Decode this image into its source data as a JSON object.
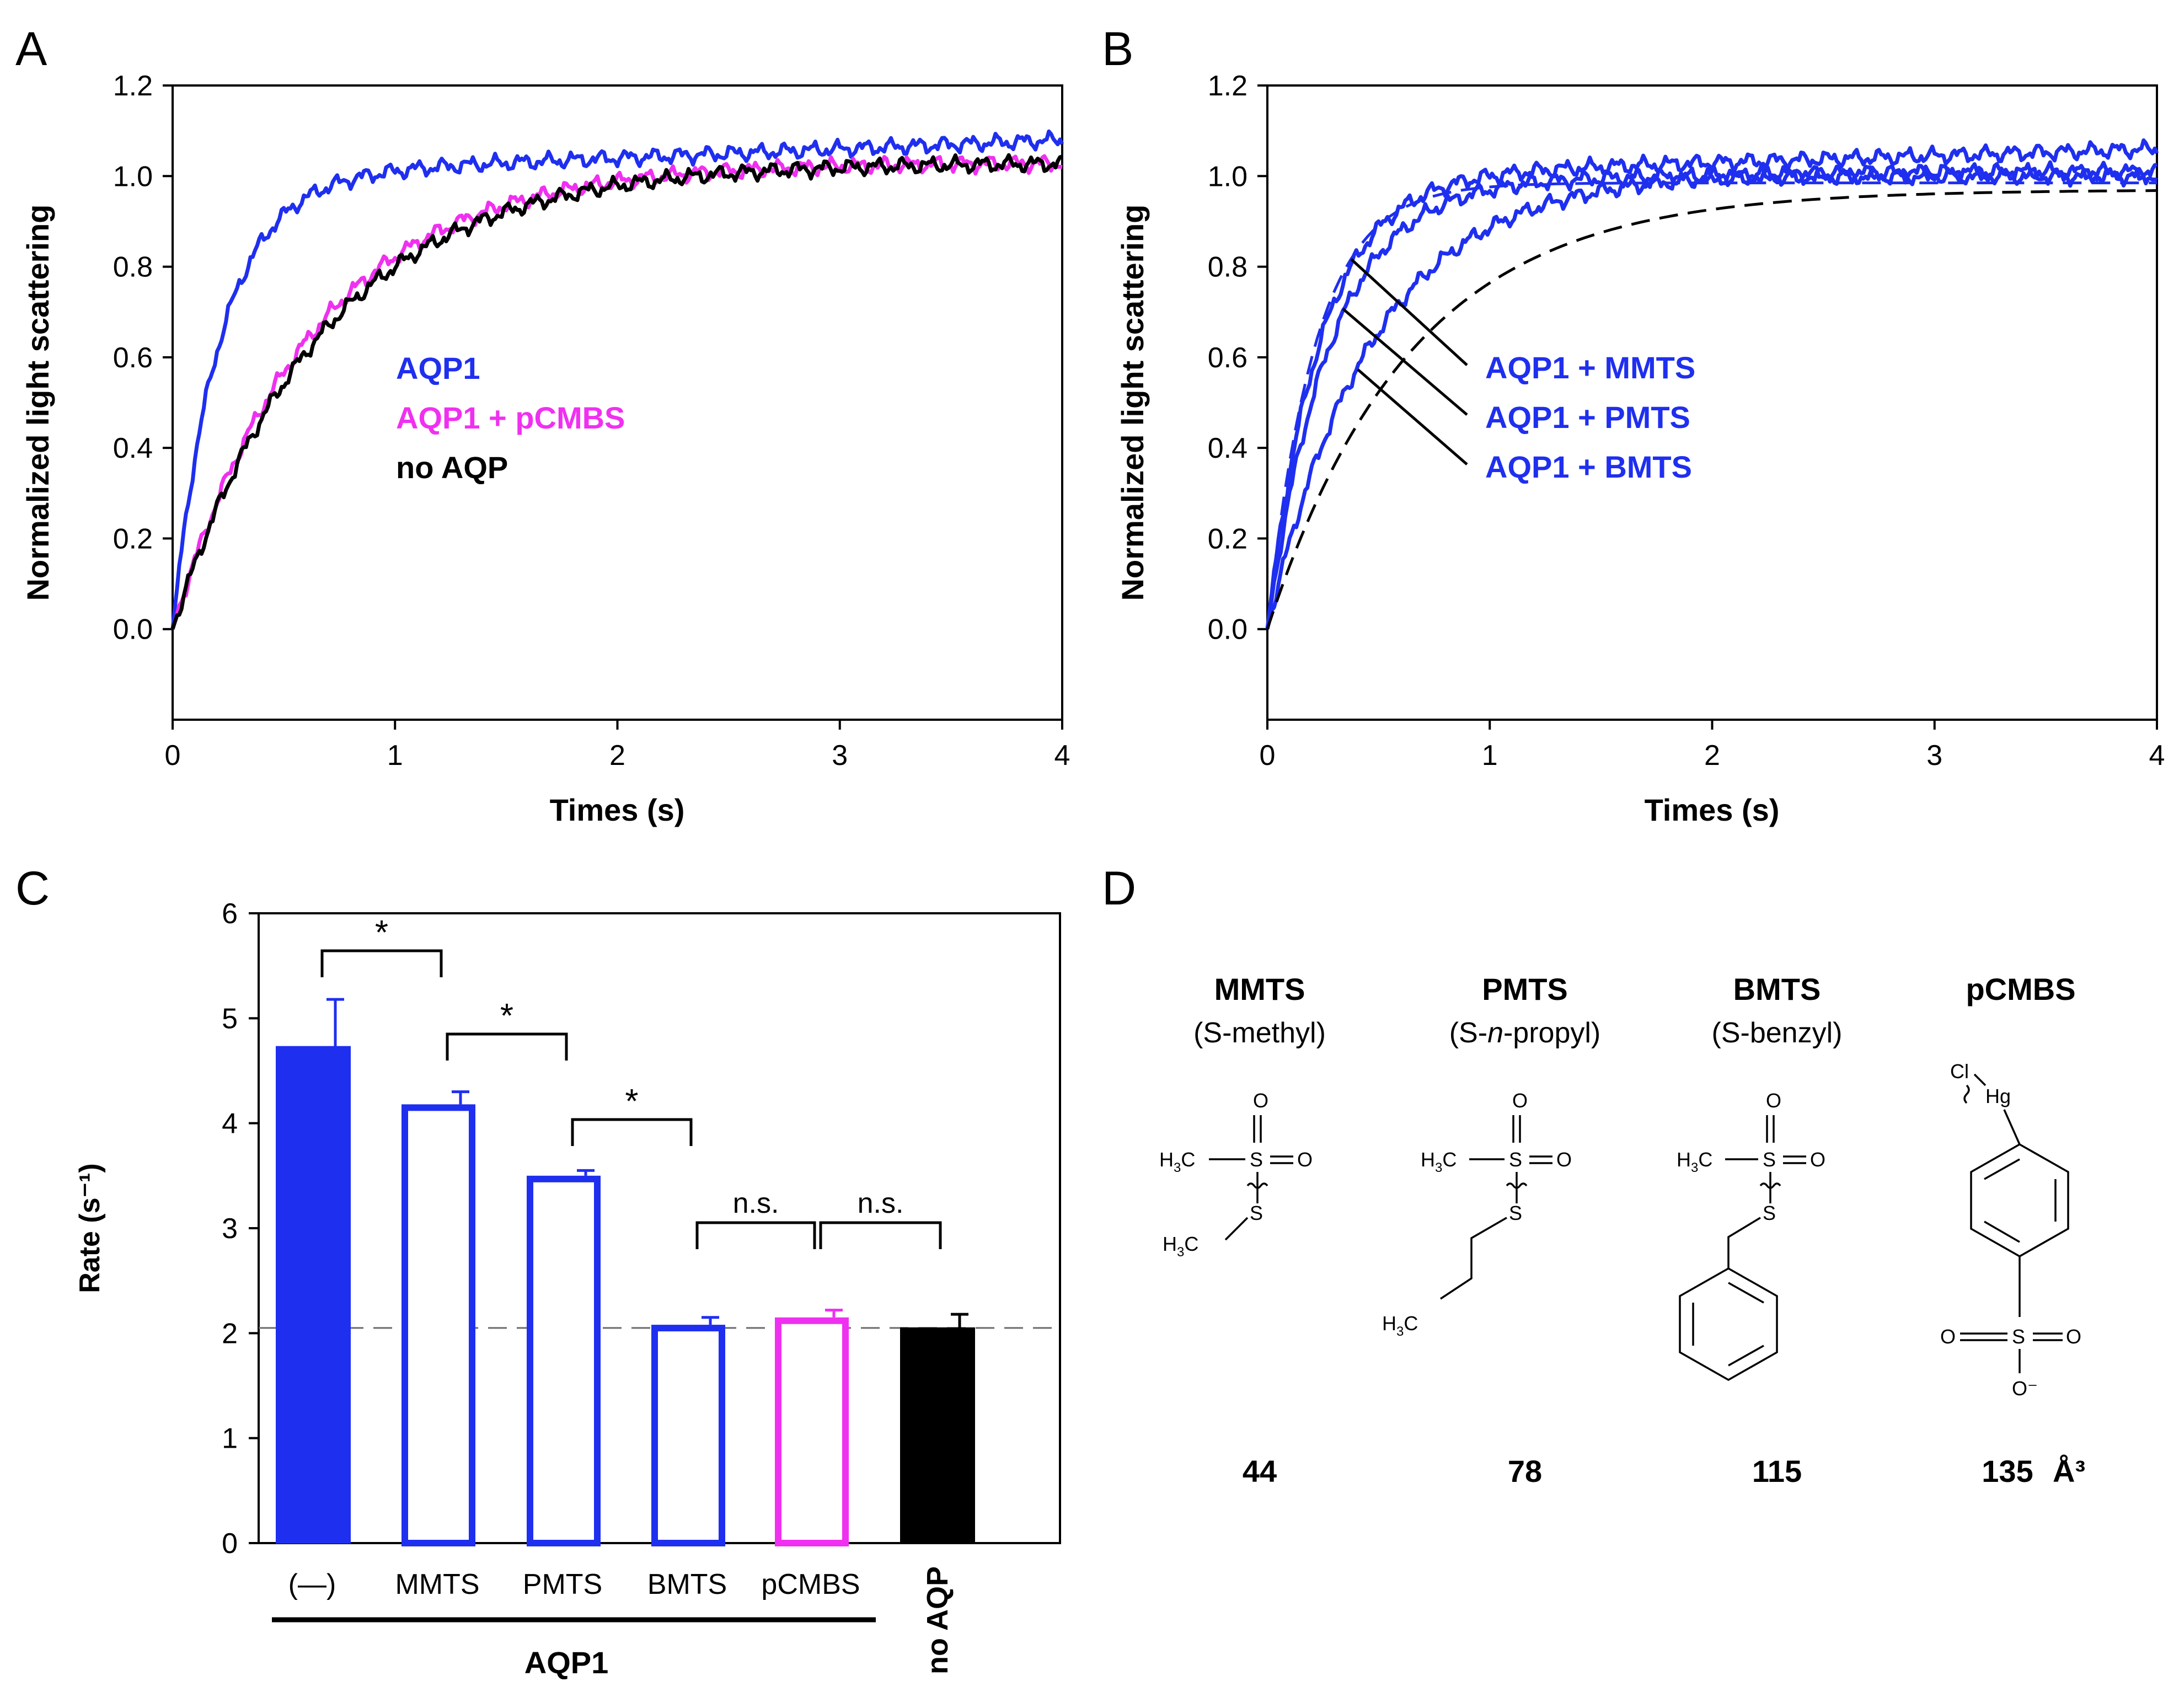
{
  "colors": {
    "aqp1": "#1f2fef",
    "pcmbs": "#f030f0",
    "noaqp": "#000000",
    "axis": "#000000",
    "refline": "#6b6b6b"
  },
  "panels": {
    "A": "A",
    "B": "B",
    "C": "C",
    "D": "D"
  },
  "chart_data": [
    {
      "id": "A",
      "type": "line",
      "xlabel": "Times (s)",
      "ylabel": "Normalized light scattering",
      "xlim": [
        0,
        4
      ],
      "ylim": [
        -0.2,
        1.2
      ],
      "xticks": [
        "0",
        "1",
        "2",
        "3",
        "4"
      ],
      "yticks": [
        "0.0",
        "0.2",
        "0.4",
        "0.6",
        "0.8",
        "1.0",
        "1.2"
      ],
      "series": [
        {
          "name": "AQP1",
          "color": "#1f2fef",
          "model": {
            "a": 1.0,
            "k": 4.7,
            "drift": 0.02
          }
        },
        {
          "name": "AQP1 + pCMBS",
          "color": "#f030f0",
          "model": {
            "a": 1.03,
            "k": 1.6,
            "drift": 0.0
          }
        },
        {
          "name": "no AQP",
          "color": "#000000",
          "model": {
            "a": 1.03,
            "k": 1.5,
            "drift": 0.0
          }
        }
      ],
      "legend": [
        "AQP1",
        "AQP1 + pCMBS",
        "no AQP"
      ]
    },
    {
      "id": "B",
      "type": "line",
      "xlabel": "Times (s)",
      "ylabel": "Normalized light scattering",
      "xlim": [
        0,
        4
      ],
      "ylim": [
        -0.2,
        1.2
      ],
      "xticks": [
        "0",
        "1",
        "2",
        "3",
        "4"
      ],
      "yticks": [
        "0.0",
        "0.2",
        "0.4",
        "0.6",
        "0.8",
        "1.0",
        "1.2"
      ],
      "series": [
        {
          "name": "AQP1 + MMTS",
          "color": "#1f2fef",
          "model": {
            "a": 1.0,
            "k": 4.2,
            "drift": 0.015
          }
        },
        {
          "name": "AQP1 + PMTS",
          "color": "#1f2fef",
          "model": {
            "a": 1.0,
            "k": 3.5,
            "drift": 0.0
          }
        },
        {
          "name": "AQP1 + BMTS",
          "color": "#1f2fef",
          "model": {
            "a": 1.01,
            "k": 2.1,
            "drift": 0.0
          }
        },
        {
          "name": "AQP1 fit",
          "color": "#1f2fef",
          "dashed": true,
          "model": {
            "a": 0.985,
            "k": 4.7,
            "drift": 0.0
          }
        },
        {
          "name": "no AQP fit",
          "color": "#000000",
          "dashed": true,
          "model": {
            "a": 0.97,
            "k": 1.55,
            "drift": 0.0
          }
        }
      ],
      "labels": [
        "AQP1 + MMTS",
        "AQP1 + PMTS",
        "AQP1 + BMTS"
      ]
    },
    {
      "id": "C",
      "type": "bar",
      "ylabel": "Rate (s⁻¹)",
      "ylim": [
        0,
        6
      ],
      "yticks": [
        "0",
        "1",
        "2",
        "3",
        "4",
        "5",
        "6"
      ],
      "categories": [
        "(—)",
        "MMTS",
        "PMTS",
        "BMTS",
        "pCMBS",
        "no AQP"
      ],
      "values": [
        4.73,
        4.18,
        3.5,
        2.08,
        2.15,
        2.05
      ],
      "errors": [
        0.45,
        0.12,
        0.05,
        0.07,
        0.07,
        0.13
      ],
      "bar_colors": [
        "#1f2fef",
        "#1f2fef",
        "#1f2fef",
        "#1f2fef",
        "#f030f0",
        "#000000"
      ],
      "filled": [
        true,
        false,
        false,
        false,
        false,
        true
      ],
      "reference_line": 2.05,
      "group_label": "AQP1",
      "significance": [
        {
          "from": 0,
          "to": 1,
          "label": "*"
        },
        {
          "from": 1,
          "to": 2,
          "label": "*"
        },
        {
          "from": 2,
          "to": 3,
          "label": "*"
        },
        {
          "from": 3,
          "to": 4,
          "label": "n.s."
        },
        {
          "from": 4,
          "to": 5,
          "label": "n.s."
        }
      ]
    }
  ],
  "panel_d": {
    "compounds": [
      {
        "name": "MMTS",
        "desc": "(S-methyl)",
        "volume": "44"
      },
      {
        "name": "PMTS",
        "desc_pre": "(S-",
        "desc_it": "n",
        "desc_post": "-propyl)",
        "volume": "78"
      },
      {
        "name": "BMTS",
        "desc": "(S-benzyl)",
        "volume": "115"
      },
      {
        "name": "pCMBS",
        "desc": "",
        "volume": "135"
      }
    ],
    "unit": "Å³",
    "atoms": {
      "O": "O",
      "S": "S",
      "H3C": "H3C",
      "Cl": "Cl",
      "Hg": "Hg",
      "Ominus": "O⁻"
    }
  }
}
